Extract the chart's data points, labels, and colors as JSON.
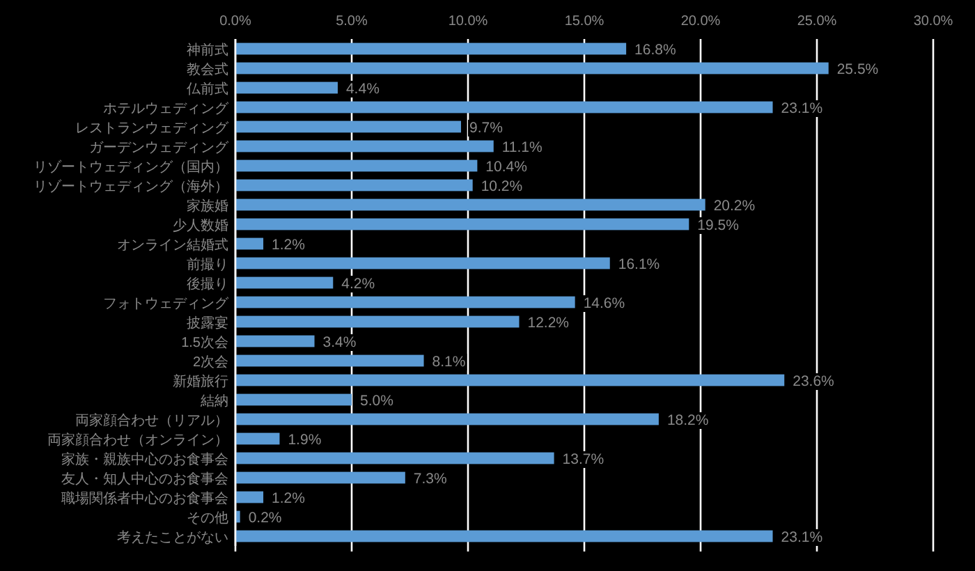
{
  "chart_data": {
    "type": "bar",
    "orientation": "horizontal",
    "categories": [
      "神前式",
      "教会式",
      "仏前式",
      "ホテルウェディング",
      "レストランウェディング",
      "ガーデンウェディング",
      "リゾートウェディング（国内）",
      "リゾートウェディング（海外）",
      "家族婚",
      "少人数婚",
      "オンライン結婚式",
      "前撮り",
      "後撮り",
      "フォトウェディング",
      "披露宴",
      "1.5次会",
      "2次会",
      "新婚旅行",
      "結納",
      "両家顔合わせ（リアル）",
      "両家顔合わせ（オンライン）",
      "家族・親族中心のお食事会",
      "友人・知人中心のお食事会",
      "職場関係者中心のお食事会",
      "その他",
      "考えたことがない"
    ],
    "values": [
      16.8,
      25.5,
      4.4,
      23.1,
      9.7,
      11.1,
      10.4,
      10.2,
      20.2,
      19.5,
      1.2,
      16.1,
      4.2,
      14.6,
      12.2,
      3.4,
      8.1,
      23.6,
      5.0,
      18.2,
      1.9,
      13.7,
      7.3,
      1.2,
      0.2,
      23.1
    ],
    "value_labels": [
      "16.8%",
      "25.5%",
      "4.4%",
      "23.1%",
      "9.7%",
      "11.1%",
      "10.4%",
      "10.2%",
      "20.2%",
      "19.5%",
      "1.2%",
      "16.1%",
      "4.2%",
      "14.6%",
      "12.2%",
      "3.4%",
      "8.1%",
      "23.6%",
      "5.0%",
      "18.2%",
      "1.9%",
      "13.7%",
      "7.3%",
      "1.2%",
      "0.2%",
      "23.1%"
    ],
    "color": "#5b9bd5",
    "xlim": [
      0,
      30
    ],
    "xticks": [
      {
        "value": 0,
        "label": "0.0%"
      },
      {
        "value": 5,
        "label": "5.0%"
      },
      {
        "value": 10,
        "label": "10.0%"
      },
      {
        "value": 15,
        "label": "15.0%"
      },
      {
        "value": 20,
        "label": "20.0%"
      },
      {
        "value": 25,
        "label": "25.0%"
      },
      {
        "value": 30,
        "label": "30.0%"
      }
    ],
    "grid": "x"
  }
}
